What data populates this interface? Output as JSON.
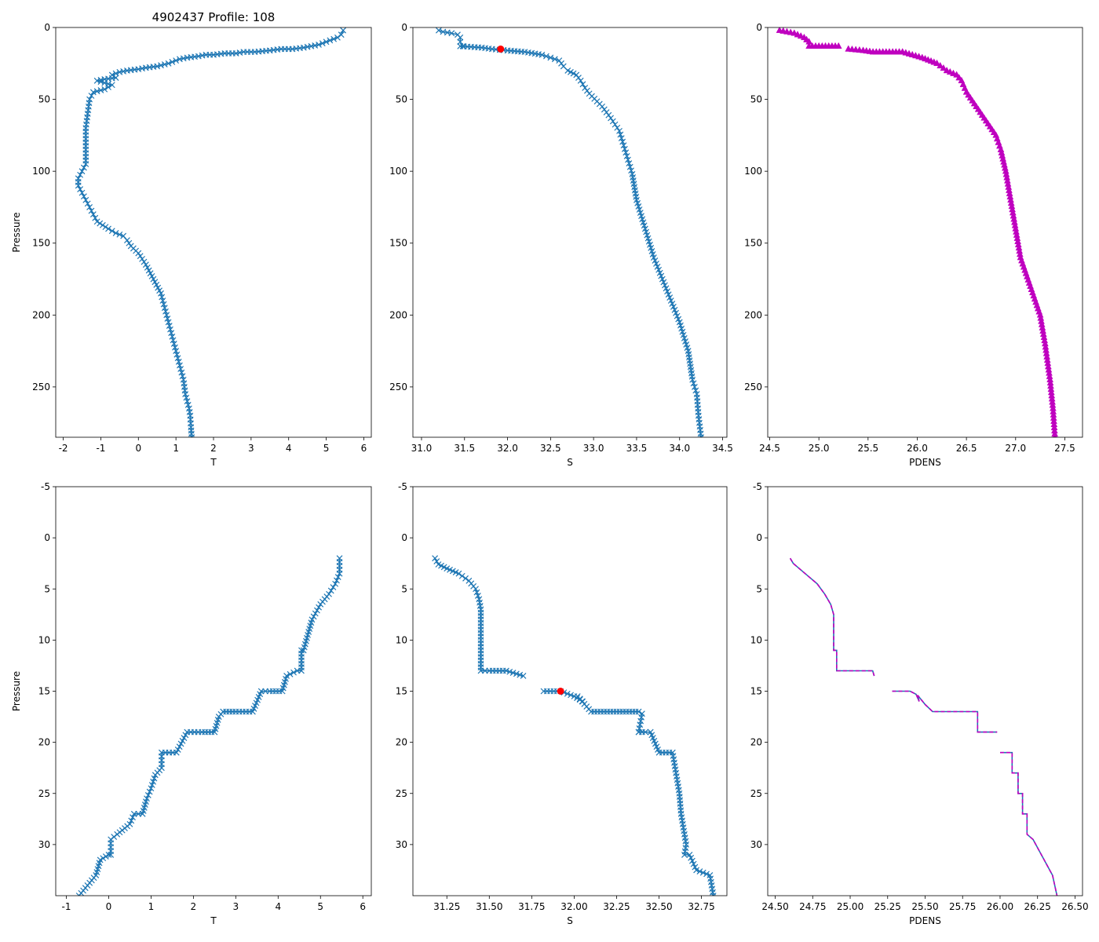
{
  "figure": {
    "title": "4902437 Profile: 108",
    "colors": {
      "series": "#1f77b4",
      "density": "#bf00bf",
      "marker": "#ff0000"
    }
  },
  "chart_data": [
    {
      "type": "line",
      "panel": "top-left",
      "xlabel": "T",
      "ylabel": "Pressure",
      "xlim": [
        -2.2,
        6.2
      ],
      "ylim": [
        285,
        0
      ],
      "xticks": [
        "-2",
        "-1",
        "0",
        "1",
        "2",
        "3",
        "4",
        "5",
        "6"
      ],
      "xtick_values": [
        -2,
        -1,
        0,
        1,
        2,
        3,
        4,
        5,
        6
      ],
      "yticks": [
        "0",
        "50",
        "100",
        "150",
        "200",
        "250"
      ],
      "ytick_values": [
        0,
        50,
        100,
        150,
        200,
        250
      ],
      "marker": "x",
      "series": [
        {
          "name": "T",
          "x": [
            5.45,
            5.4,
            5.3,
            5.0,
            4.8,
            4.6,
            4.4,
            4.1,
            3.8,
            3.5,
            3.1,
            2.8,
            2.6,
            2.3,
            2.0,
            1.8,
            1.6,
            1.3,
            1.1,
            1.0,
            0.8,
            0.5,
            0.2,
            0.0,
            -0.3,
            -0.5,
            -0.6,
            -0.7,
            -0.6,
            -0.9,
            -1.1,
            -0.7,
            -0.9,
            -1.2,
            -1.3,
            -1.35,
            -1.4,
            -1.4,
            -1.4,
            -1.4,
            -1.5,
            -1.6,
            -1.6,
            -1.5,
            -1.4,
            -1.3,
            -1.2,
            -1.1,
            -0.8,
            -0.6,
            -0.4,
            -0.3,
            -0.2,
            0.0,
            0.2,
            0.4,
            0.6,
            0.7,
            0.8,
            0.9,
            1.0,
            1.1,
            1.2,
            1.25,
            1.3,
            1.35,
            1.38,
            1.4,
            1.42
          ],
          "y": [
            2,
            5,
            7,
            10,
            12,
            13,
            14,
            15,
            15,
            16,
            17,
            17,
            18,
            18,
            19,
            19,
            20,
            21,
            22,
            23,
            25,
            27,
            28,
            29,
            30,
            31,
            32,
            33,
            35,
            36,
            37,
            40,
            43,
            45,
            50,
            60,
            70,
            80,
            90,
            95,
            100,
            105,
            110,
            115,
            120,
            125,
            130,
            135,
            140,
            143,
            145,
            148,
            152,
            157,
            165,
            175,
            185,
            195,
            205,
            215,
            225,
            235,
            245,
            255,
            260,
            265,
            270,
            278,
            285
          ]
        }
      ]
    },
    {
      "type": "line",
      "panel": "top-middle",
      "xlabel": "S",
      "ylabel": "",
      "xlim": [
        30.9,
        34.55
      ],
      "ylim": [
        285,
        0
      ],
      "xticks": [
        "31.0",
        "31.5",
        "32.0",
        "32.5",
        "33.0",
        "33.5",
        "34.0",
        "34.5"
      ],
      "xtick_values": [
        31.0,
        31.5,
        32.0,
        32.5,
        33.0,
        33.5,
        34.0,
        34.5
      ],
      "yticks": [
        "0",
        "50",
        "100",
        "150",
        "200",
        "250"
      ],
      "ytick_values": [
        0,
        50,
        100,
        150,
        200,
        250
      ],
      "marker": "x",
      "series": [
        {
          "name": "S",
          "x": [
            31.2,
            31.25,
            31.35,
            31.42,
            31.45,
            31.45,
            31.48,
            31.45,
            31.7,
            31.82,
            32.0,
            32.2,
            32.4,
            32.5,
            32.6,
            32.65,
            32.7,
            32.8,
            32.85,
            32.9,
            32.95,
            33.1,
            33.2,
            33.3,
            33.35,
            33.4,
            33.45,
            33.5,
            33.6,
            33.7,
            33.8,
            33.9,
            34.0,
            34.1,
            34.15,
            34.2,
            34.22,
            34.25
          ],
          "y": [
            2,
            3,
            4,
            5,
            7,
            10,
            13,
            13,
            14,
            15,
            16,
            17,
            19,
            21,
            23,
            27,
            30,
            33,
            37,
            42,
            46,
            55,
            63,
            72,
            82,
            92,
            102,
            120,
            140,
            160,
            175,
            190,
            205,
            225,
            245,
            255,
            270,
            285
          ]
        },
        {
          "name": "mixed-layer point",
          "x": [
            31.92
          ],
          "y": [
            15
          ]
        }
      ]
    },
    {
      "type": "line",
      "panel": "top-right",
      "xlabel": "PDENS",
      "ylabel": "",
      "xlim": [
        24.48,
        27.68
      ],
      "ylim": [
        285,
        0
      ],
      "xticks": [
        "24.5",
        "25.0",
        "25.5",
        "26.0",
        "26.5",
        "27.0",
        "27.5"
      ],
      "xtick_values": [
        24.5,
        25.0,
        25.5,
        26.0,
        26.5,
        27.0,
        27.5
      ],
      "yticks": [
        "0",
        "50",
        "100",
        "150",
        "200",
        "250"
      ],
      "ytick_values": [
        0,
        50,
        100,
        150,
        200,
        250
      ],
      "marker": "^",
      "series": [
        {
          "name": "PDENS",
          "x": [
            24.6,
            24.75,
            24.85,
            24.9,
            24.9,
            25.0,
            25.2,
            null,
            25.3,
            25.45,
            25.55,
            25.85,
            26.05,
            26.2,
            26.3,
            26.4,
            26.45,
            26.5,
            26.6,
            26.7,
            26.8,
            26.85,
            26.9,
            26.95,
            27.0,
            27.05,
            27.15,
            27.25,
            27.3,
            27.35,
            27.38,
            27.4
          ],
          "y": [
            2,
            4,
            7,
            10,
            13,
            13,
            13,
            null,
            15,
            16,
            17,
            17,
            21,
            25,
            30,
            33,
            37,
            45,
            55,
            65,
            75,
            85,
            100,
            120,
            140,
            160,
            180,
            200,
            220,
            245,
            265,
            285
          ]
        }
      ]
    },
    {
      "type": "line",
      "panel": "bottom-left",
      "xlabel": "T",
      "ylabel": "Pressure",
      "xlim": [
        -1.25,
        6.2
      ],
      "ylim": [
        35,
        -5
      ],
      "xticks": [
        "-1",
        "0",
        "1",
        "2",
        "3",
        "4",
        "5",
        "6"
      ],
      "xtick_values": [
        -1,
        0,
        1,
        2,
        3,
        4,
        5,
        6
      ],
      "yticks": [
        "-5",
        "0",
        "5",
        "10",
        "15",
        "20",
        "25",
        "30"
      ],
      "ytick_values": [
        -5,
        0,
        5,
        10,
        15,
        20,
        25,
        30
      ],
      "marker": "x",
      "series": [
        {
          "name": "T",
          "x": [
            5.45,
            5.45,
            5.35,
            5.2,
            5.0,
            4.8,
            4.7,
            4.6,
            4.55,
            4.55,
            4.45,
            4.2,
            4.1,
            3.8,
            3.6,
            3.4,
            3.0,
            2.7,
            2.6,
            2.5,
            2.2,
            1.85,
            1.6,
            1.25,
            1.25,
            1.1,
            1.0,
            0.9,
            0.8,
            0.6,
            0.5,
            0.2,
            0.05,
            0.05,
            0.0,
            -0.2,
            -0.3,
            -0.5,
            -0.7
          ],
          "y": [
            2,
            3.5,
            4.5,
            5.5,
            6.5,
            8,
            9.5,
            11,
            11,
            13,
            13,
            13.5,
            15,
            15,
            15,
            17,
            17,
            17,
            17.5,
            19,
            19,
            19,
            21,
            21,
            22.5,
            23.2,
            24.5,
            25.5,
            27,
            27,
            28,
            29,
            29.5,
            31,
            31,
            31.5,
            33,
            34,
            35
          ]
        }
      ]
    },
    {
      "type": "line",
      "panel": "bottom-middle",
      "xlabel": "S",
      "ylabel": "",
      "xlim": [
        31.05,
        32.9
      ],
      "ylim": [
        35,
        -5
      ],
      "xticks": [
        "31.25",
        "31.50",
        "31.75",
        "32.00",
        "32.25",
        "32.50",
        "32.75"
      ],
      "xtick_values": [
        31.25,
        31.5,
        31.75,
        32.0,
        32.25,
        32.5,
        32.75
      ],
      "yticks": [
        "-5",
        "0",
        "5",
        "10",
        "15",
        "20",
        "25",
        "30"
      ],
      "ytick_values": [
        -5,
        0,
        5,
        10,
        15,
        20,
        25,
        30
      ],
      "marker": "x",
      "series": [
        {
          "name": "S upper",
          "x": [
            31.18,
            31.2,
            31.25,
            31.32,
            31.38,
            31.42,
            31.44,
            31.45,
            31.45,
            31.45,
            31.45,
            31.5,
            31.6,
            31.7
          ],
          "y": [
            2,
            2.6,
            3,
            3.5,
            4.2,
            5,
            6,
            7,
            9,
            11,
            13,
            13,
            13,
            13.5
          ]
        },
        {
          "name": "S lower",
          "x": [
            31.82,
            31.92,
            32.0,
            32.05,
            32.02,
            32.1,
            32.25,
            32.38,
            32.4,
            32.38,
            32.38,
            32.42,
            32.45,
            32.5,
            32.58,
            32.6,
            32.62,
            32.63,
            32.65,
            32.66,
            32.65,
            32.68,
            32.72,
            32.8,
            32.82
          ],
          "y": [
            15,
            15,
            15.5,
            16,
            15.5,
            17,
            17,
            17,
            17.2,
            19,
            19,
            19,
            19,
            21,
            21,
            23,
            25,
            27,
            29,
            30,
            31,
            31,
            32.5,
            33,
            35
          ]
        },
        {
          "name": "mixed-layer point",
          "x": [
            31.92
          ],
          "y": [
            15
          ]
        }
      ]
    },
    {
      "type": "line",
      "panel": "bottom-right",
      "xlabel": "PDENS",
      "ylabel": "",
      "xlim": [
        24.45,
        26.55
      ],
      "ylim": [
        35,
        -5
      ],
      "xticks": [
        "24.50",
        "24.75",
        "25.00",
        "25.25",
        "25.50",
        "25.75",
        "26.00",
        "26.25",
        "26.50"
      ],
      "xtick_values": [
        24.5,
        24.75,
        25.0,
        25.25,
        25.5,
        25.75,
        26.0,
        26.25,
        26.5
      ],
      "yticks": [
        "-5",
        "0",
        "5",
        "10",
        "15",
        "20",
        "25",
        "30"
      ],
      "ytick_values": [
        -5,
        0,
        5,
        10,
        15,
        20,
        25,
        30
      ],
      "marker": "none",
      "series": [
        {
          "name": "PDENS seg 1",
          "x": [
            24.6,
            24.62,
            24.7,
            24.78,
            24.83,
            24.87,
            24.89,
            24.89,
            24.91,
            24.91,
            25.1,
            25.15,
            25.16
          ],
          "y": [
            2,
            2.5,
            3.5,
            4.5,
            5.5,
            6.5,
            7.5,
            11,
            11,
            13,
            13,
            13,
            13.5
          ]
        },
        {
          "name": "PDENS seg 2",
          "x": [
            25.28,
            25.4,
            25.44,
            25.46,
            25.45,
            25.5,
            25.55,
            25.85,
            25.85,
            25.98
          ],
          "y": [
            15,
            15,
            15.3,
            16,
            15.4,
            16.3,
            17,
            17,
            19,
            19
          ]
        },
        {
          "name": "PDENS seg 3",
          "x": [
            26.0,
            26.08,
            26.08,
            26.12,
            26.12,
            26.15,
            26.15,
            26.18,
            26.18,
            26.22,
            26.35,
            26.38
          ],
          "y": [
            21,
            21,
            23,
            23,
            25,
            25,
            27,
            27,
            29,
            29.5,
            33,
            35
          ]
        }
      ]
    }
  ]
}
